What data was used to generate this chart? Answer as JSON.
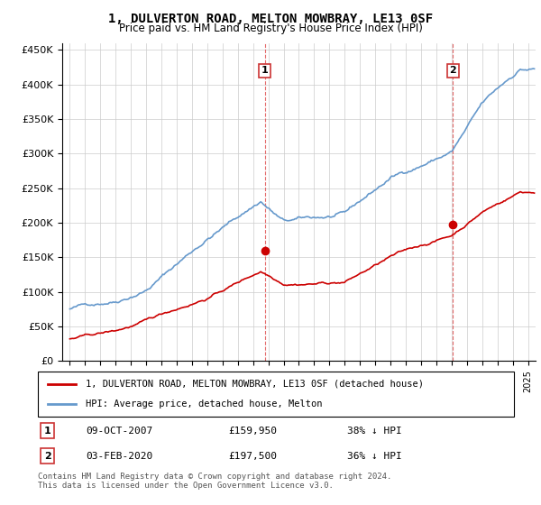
{
  "title": "1, DULVERTON ROAD, MELTON MOWBRAY, LE13 0SF",
  "subtitle": "Price paid vs. HM Land Registry's House Price Index (HPI)",
  "legend_property": "1, DULVERTON ROAD, MELTON MOWBRAY, LE13 0SF (detached house)",
  "legend_hpi": "HPI: Average price, detached house, Melton",
  "footnote": "Contains HM Land Registry data © Crown copyright and database right 2024.\nThis data is licensed under the Open Government Licence v3.0.",
  "marker1": {
    "label": "1",
    "date": "09-OCT-2007",
    "price": "£159,950",
    "hpi": "38% ↓ HPI",
    "x_year": 2007.77
  },
  "marker2": {
    "label": "2",
    "date": "03-FEB-2020",
    "price": "£197,500",
    "hpi": "36% ↓ HPI",
    "x_year": 2020.09
  },
  "property_color": "#cc0000",
  "hpi_color": "#6699cc",
  "ylim": [
    0,
    460000
  ],
  "yticks": [
    0,
    50000,
    100000,
    150000,
    200000,
    250000,
    300000,
    350000,
    400000,
    450000
  ],
  "xlim_start": 1994.5,
  "xlim_end": 2025.5
}
